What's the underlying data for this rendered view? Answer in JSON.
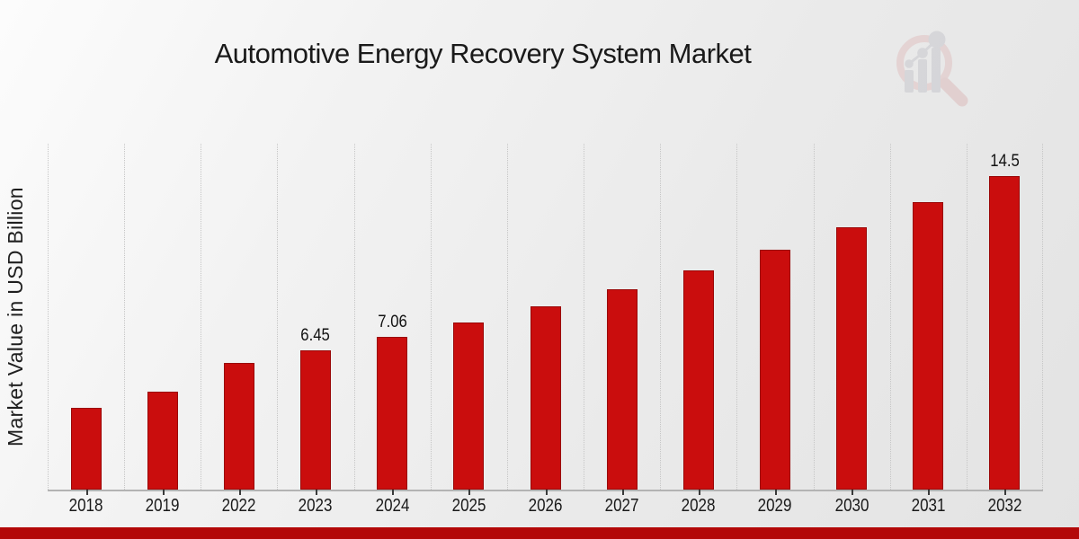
{
  "chart_data": {
    "type": "bar",
    "title": "Automotive Energy Recovery System Market",
    "ylabel": "Market Value in USD Billion",
    "xlabel": "",
    "categories": [
      "2018",
      "2019",
      "2022",
      "2023",
      "2024",
      "2025",
      "2026",
      "2027",
      "2028",
      "2029",
      "2030",
      "2031",
      "2032"
    ],
    "values": [
      3.78,
      4.52,
      5.87,
      6.45,
      7.06,
      7.73,
      8.46,
      9.27,
      10.15,
      11.1,
      12.14,
      13.3,
      14.5
    ],
    "bar_labels": [
      "",
      "",
      "",
      "6.45",
      "7.06",
      "",
      "",
      "",
      "",
      "",
      "",
      "",
      "14.5"
    ],
    "ylim": [
      0,
      16
    ],
    "grid": "vertical dotted gridlines at category boundaries",
    "legend_position": "none",
    "colors": {
      "bar": "#ca0d0d",
      "bar_edge": "#9a0707",
      "gridline": "#c6c6c6",
      "axis_line": "#b3b3b3",
      "tick": "#3a3a3a",
      "text": "#1a1a1a"
    }
  },
  "footer": {
    "ribbon_color": "#b30808"
  },
  "logo": {
    "icon": "magnifier-bar-chart-logo",
    "ring_color": "#e0c2c2",
    "handle_color": "#ddbcbc",
    "glyph_color": "#c7c7cd"
  }
}
